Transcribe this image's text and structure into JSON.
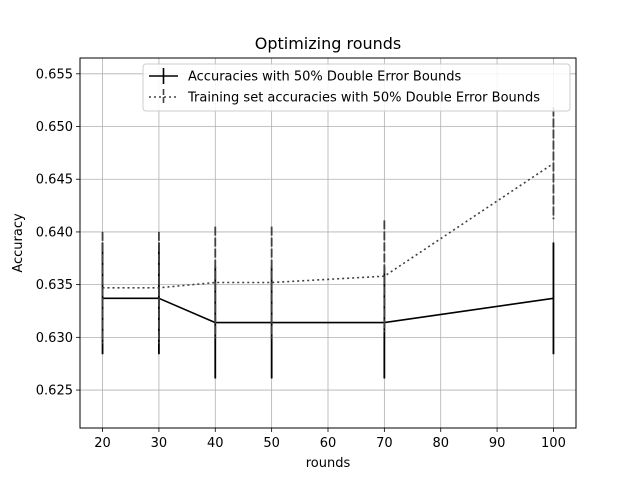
{
  "chart_data": {
    "type": "line",
    "title": "Optimizing rounds",
    "xlabel": "rounds",
    "ylabel": "Accuracy",
    "xlim": [
      16,
      104
    ],
    "ylim": [
      0.6214,
      0.6565
    ],
    "xticks": [
      20,
      30,
      40,
      50,
      60,
      70,
      80,
      90,
      100
    ],
    "yticks": [
      0.625,
      0.63,
      0.635,
      0.64,
      0.645,
      0.65,
      0.655
    ],
    "ytick_labels": [
      "0.625",
      "0.630",
      "0.635",
      "0.640",
      "0.645",
      "0.650",
      "0.655"
    ],
    "grid": true,
    "legend_position": "top-right",
    "series": [
      {
        "name": "Accuracies with 50% Double Error Bounds",
        "style": "solid",
        "color": "#000000",
        "x": [
          20,
          30,
          40,
          50,
          70,
          100
        ],
        "y": [
          0.6337,
          0.6337,
          0.6314,
          0.6314,
          0.6314,
          0.6337
        ],
        "err": [
          0.0053,
          0.0053,
          0.0053,
          0.0053,
          0.0053,
          0.0053
        ]
      },
      {
        "name": "Training set accuracies with 50% Double Error Bounds",
        "style": "dotted",
        "color": "#404040",
        "x": [
          20,
          30,
          40,
          50,
          70,
          100
        ],
        "y": [
          0.6347,
          0.6347,
          0.6352,
          0.6352,
          0.6358,
          0.6465
        ],
        "err": [
          0.0053,
          0.0053,
          0.0053,
          0.0053,
          0.0053,
          0.0053
        ]
      }
    ]
  }
}
